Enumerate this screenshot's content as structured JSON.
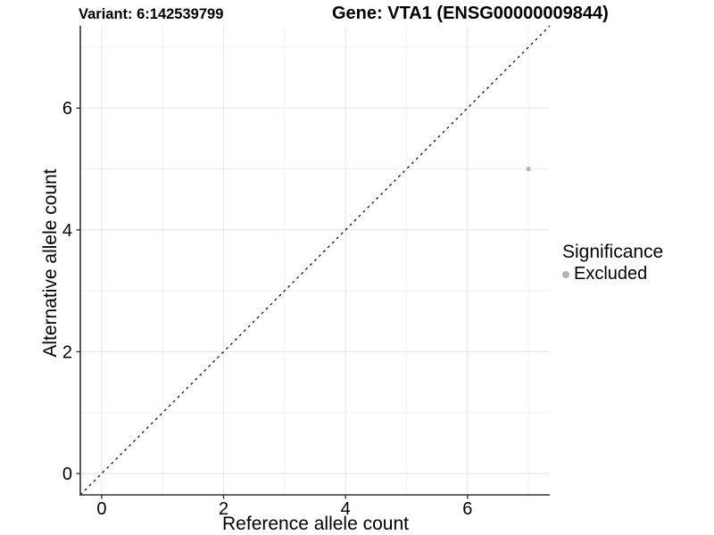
{
  "titles": {
    "variant": "Variant: 6:142539799",
    "gene": "Gene: VTA1 (ENSG00000009844)"
  },
  "chart_data": {
    "type": "scatter",
    "title_left": "Variant: 6:142539799",
    "title_right": "Gene: VTA1 (ENSG00000009844)",
    "xlabel": "Reference allele count",
    "ylabel": "Alternative allele count",
    "xlim": [
      -0.35,
      7.35
    ],
    "ylim": [
      -0.35,
      7.35
    ],
    "x_ticks": [
      0,
      2,
      4,
      6
    ],
    "y_ticks": [
      0,
      2,
      4,
      6
    ],
    "x_minor_ticks": [
      1,
      3,
      5,
      7
    ],
    "y_minor_ticks": [
      1,
      3,
      5,
      7
    ],
    "grid": true,
    "points": [
      {
        "x": 7,
        "y": 5,
        "series": "Excluded"
      }
    ],
    "reference_line": {
      "type": "identity",
      "style": "dashed",
      "equation": "y = x"
    },
    "legend": {
      "title": "Significance",
      "position": "right",
      "items": [
        {
          "label": "Excluded",
          "color": "#b4b4b4"
        }
      ]
    },
    "colors": {
      "point_excluded": "#b4b4b4",
      "grid_major": "#e6e6e6",
      "grid_minor": "#f0f0f0",
      "axis_line": "#333333",
      "reference_line": "#111111",
      "text": "#000000"
    }
  }
}
